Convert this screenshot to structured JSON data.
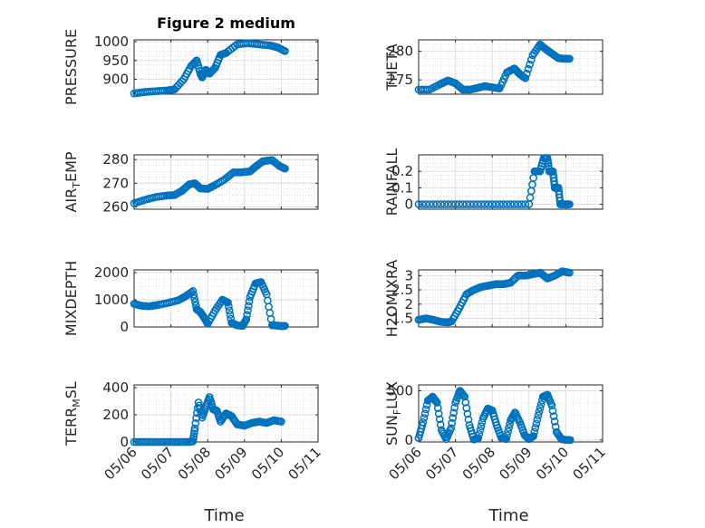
{
  "figure": {
    "title": "Figure 2 medium",
    "x_label": "Time"
  },
  "x_ticks": [
    "05/06",
    "05/07",
    "05/08",
    "05/09",
    "05/10",
    "05/11"
  ],
  "marker_color": "#0072bd",
  "chart_data": [
    {
      "id": "pressure",
      "type": "scatter",
      "title": "Figure 2 medium",
      "xlabel": "",
      "ylabel": "PRESSURE",
      "xlim": [
        0,
        5
      ],
      "ylim": [
        860,
        1005
      ],
      "yticks": [
        900,
        950,
        1000
      ],
      "yticklabels": [
        "900",
        "950",
        "1000"
      ],
      "grid": true,
      "x": [
        0,
        0.3,
        0.6,
        0.9,
        1.1,
        1.35,
        1.55,
        1.7,
        1.8,
        1.85,
        1.95,
        2.05,
        2.2,
        2.35,
        2.5,
        2.8,
        3.1,
        3.4,
        3.7,
        3.9,
        4.1
      ],
      "y": [
        862,
        866,
        868,
        870,
        873,
        900,
        935,
        950,
        915,
        905,
        925,
        915,
        930,
        965,
        970,
        993,
        996,
        993,
        990,
        985,
        975
      ]
    },
    {
      "id": "theta",
      "type": "scatter",
      "title": "",
      "xlabel": "",
      "ylabel": "THETA",
      "xlim": [
        0,
        5
      ],
      "ylim": [
        272.5,
        282
      ],
      "yticks": [
        275,
        280
      ],
      "yticklabels": [
        "275",
        "280"
      ],
      "grid": true,
      "x": [
        0,
        0.3,
        0.6,
        0.8,
        1.0,
        1.2,
        1.4,
        1.6,
        1.8,
        2.0,
        2.2,
        2.4,
        2.6,
        2.75,
        2.9,
        3.1,
        3.3,
        3.45,
        3.6,
        3.8,
        3.95,
        4.1
      ],
      "y": [
        273.3,
        273.3,
        274.3,
        274.9,
        274.4,
        273.3,
        273.3,
        273.6,
        273.9,
        273.7,
        273.5,
        276.3,
        277.0,
        276.0,
        275.3,
        279.3,
        281.2,
        280.4,
        279.7,
        278.8,
        278.7,
        278.7
      ]
    },
    {
      "id": "air_temp",
      "type": "scatter",
      "title": "",
      "xlabel": "",
      "ylabel": "AIR_TEMP",
      "ylabel_main": "AIR",
      "ylabel_sub": "T",
      "ylabel_rest": "EMP",
      "xlim": [
        0,
        5
      ],
      "ylim": [
        259,
        282
      ],
      "yticks": [
        260,
        270,
        280
      ],
      "yticklabels": [
        "260",
        "270",
        "280"
      ],
      "grid": true,
      "x": [
        0,
        0.3,
        0.6,
        0.9,
        1.1,
        1.3,
        1.5,
        1.65,
        1.8,
        2.0,
        2.2,
        2.45,
        2.7,
        2.9,
        3.15,
        3.3,
        3.5,
        3.75,
        3.95,
        4.1
      ],
      "y": [
        261.5,
        263,
        264.2,
        264.8,
        265,
        266.8,
        269.5,
        270,
        267.8,
        267.6,
        269.2,
        271.5,
        274.6,
        274.6,
        275,
        277,
        279.3,
        279.8,
        277.3,
        276.2
      ]
    },
    {
      "id": "rainfall",
      "type": "scatter",
      "title": "",
      "xlabel": "",
      "ylabel": "RAINFALL",
      "xlim": [
        0,
        5
      ],
      "ylim": [
        -0.03,
        0.3
      ],
      "yticks": [
        0,
        0.1,
        0.2
      ],
      "yticklabels": [
        "0",
        "0.1",
        "0.2"
      ],
      "grid": true,
      "x": [
        0,
        0.5,
        1.0,
        1.5,
        2.0,
        2.5,
        3.0,
        3.15,
        3.3,
        3.4,
        3.5,
        3.55,
        3.65,
        3.7,
        3.8,
        3.85,
        4.0,
        4.1
      ],
      "y": [
        0,
        0,
        0,
        0,
        0,
        0,
        0,
        0.2,
        0.2,
        0.28,
        0.28,
        0.2,
        0.2,
        0.1,
        0.1,
        0,
        0,
        0
      ]
    },
    {
      "id": "mixdepth",
      "type": "scatter",
      "title": "",
      "xlabel": "",
      "ylabel": "MIXDEPTH",
      "xlim": [
        0,
        5
      ],
      "ylim": [
        0,
        2100
      ],
      "yticks": [
        0,
        1000,
        2000
      ],
      "yticklabels": [
        "0",
        "1000",
        "2000"
      ],
      "grid": true,
      "x": [
        0,
        0.2,
        0.4,
        0.6,
        0.9,
        1.2,
        1.4,
        1.6,
        1.7,
        1.8,
        1.9,
        2.0,
        2.2,
        2.4,
        2.55,
        2.65,
        2.8,
        2.95,
        3.05,
        3.15,
        3.3,
        3.45,
        3.6,
        3.75,
        3.9,
        4.0,
        4.1
      ],
      "y": [
        850,
        780,
        760,
        800,
        880,
        980,
        1130,
        1320,
        650,
        550,
        350,
        120,
        600,
        1000,
        900,
        150,
        60,
        40,
        280,
        1100,
        1600,
        1650,
        1200,
        60,
        50,
        30,
        40
      ]
    },
    {
      "id": "h2omixra",
      "type": "scatter",
      "title": "",
      "xlabel": "",
      "ylabel": "H2OMIXRA",
      "xlim": [
        0,
        5
      ],
      "ylim": [
        1.2,
        3.2
      ],
      "yticks": [
        1.5,
        2,
        2.5,
        3
      ],
      "yticklabels": [
        "1.5",
        "2",
        "2.5",
        "3"
      ],
      "grid": true,
      "x": [
        0,
        0.2,
        0.4,
        0.6,
        0.8,
        0.9,
        1.1,
        1.3,
        1.5,
        1.7,
        1.9,
        2.1,
        2.3,
        2.5,
        2.7,
        2.9,
        3.1,
        3.3,
        3.5,
        3.7,
        3.9,
        4.1
      ],
      "y": [
        1.45,
        1.5,
        1.45,
        1.38,
        1.36,
        1.4,
        1.85,
        2.35,
        2.5,
        2.6,
        2.65,
        2.7,
        2.7,
        2.75,
        3.0,
        3.0,
        3.05,
        3.1,
        2.9,
        3.0,
        3.15,
        3.1
      ]
    },
    {
      "id": "terr_msl",
      "type": "scatter",
      "title": "",
      "xlabel": "Time",
      "ylabel": "TERR_MSL",
      "ylabel_main": "TERR",
      "ylabel_sub": "M",
      "ylabel_rest": "SL",
      "xlim": [
        0,
        5
      ],
      "ylim": [
        0,
        420
      ],
      "yticks": [
        0,
        200,
        400
      ],
      "yticklabels": [
        "0",
        "200",
        "400"
      ],
      "grid": true,
      "x": [
        0,
        0.3,
        0.6,
        0.9,
        1.2,
        1.5,
        1.6,
        1.65,
        1.75,
        1.85,
        1.95,
        2.05,
        2.15,
        2.25,
        2.35,
        2.5,
        2.65,
        2.8,
        3.0,
        3.2,
        3.4,
        3.6,
        3.8,
        4.0
      ],
      "y": [
        0,
        0,
        0,
        0,
        0,
        0,
        5,
        100,
        290,
        180,
        260,
        330,
        240,
        230,
        150,
        210,
        190,
        130,
        120,
        140,
        150,
        140,
        160,
        150
      ]
    },
    {
      "id": "sun_flux",
      "type": "scatter",
      "title": "",
      "xlabel": "Time",
      "ylabel": "SUN_FLUX",
      "ylabel_main": "SUN",
      "ylabel_sub": "F",
      "ylabel_rest": "LUX",
      "xlim": [
        0,
        5
      ],
      "ylim": [
        -20,
        560
      ],
      "yticks": [
        0,
        500
      ],
      "yticklabels": [
        "0",
        "500"
      ],
      "grid": true,
      "x": [
        0,
        0.12,
        0.25,
        0.38,
        0.5,
        0.62,
        0.75,
        0.88,
        1.0,
        1.12,
        1.25,
        1.38,
        1.5,
        1.62,
        1.75,
        1.88,
        2.0,
        2.12,
        2.25,
        2.38,
        2.5,
        2.62,
        2.75,
        2.88,
        3.0,
        3.12,
        3.25,
        3.38,
        3.5,
        3.62,
        3.75,
        3.88,
        4.0,
        4.12
      ],
      "y": [
        20,
        180,
        400,
        440,
        380,
        100,
        10,
        120,
        380,
        500,
        440,
        150,
        5,
        20,
        220,
        320,
        300,
        150,
        20,
        10,
        200,
        280,
        180,
        50,
        10,
        40,
        250,
        440,
        460,
        350,
        80,
        10,
        0,
        0
      ]
    }
  ]
}
